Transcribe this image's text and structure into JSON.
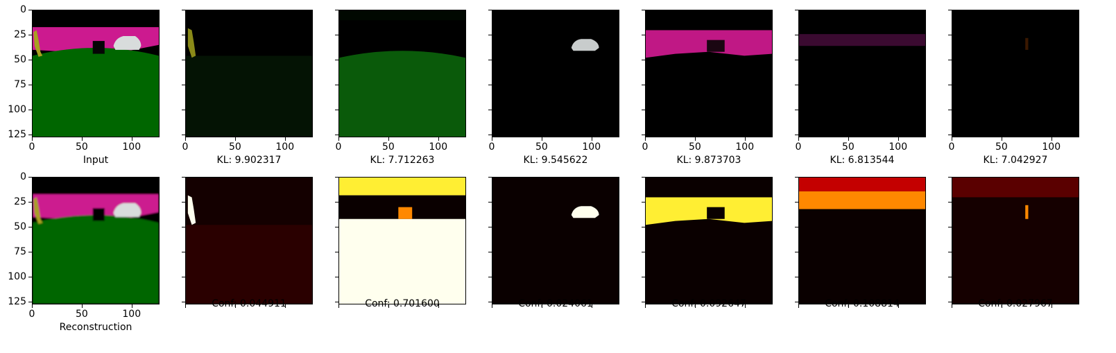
{
  "figure": {
    "row1_captions": [
      "Input",
      "KL: 9.902317",
      "KL: 7.712263",
      "KL: 9.545622",
      "KL: 9.873703",
      "KL: 6.813544",
      "KL: 7.042927"
    ],
    "row2_captions": [
      "Reconstruction",
      "Conf: 0.044911",
      "Conf: 0.701600",
      "Conf: 0.024061",
      "Conf: 0.092647",
      "Conf: 0.108814",
      "Conf: 0.027967"
    ],
    "y_tick_labels": [
      "0",
      "25",
      "50",
      "75",
      "100",
      "125"
    ],
    "x_tick_labels": [
      "0",
      "50",
      "100"
    ],
    "colors": {
      "sky": "#000000",
      "wall": "#cc1a8f",
      "ground": "#006600",
      "pedestrian": "#a8a020",
      "car": "#d8dcdc",
      "heat_dark": "#120000",
      "heat_red": "#c40000",
      "heat_orange": "#ff8800",
      "heat_yellow": "#ffee33",
      "heat_white": "#ffffee"
    }
  }
}
